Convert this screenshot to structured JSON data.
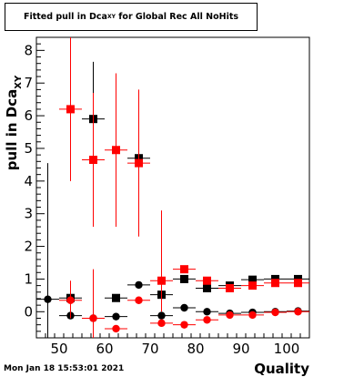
{
  "title": {
    "prefix": "Fitted pull in Dca",
    "subscript": "XY",
    "suffix": "for Global Rec All NoHits"
  },
  "timestamp": "Mon Jan 18 15:53:01 2021",
  "chart_data": {
    "type": "scatter",
    "xlabel": "Quality",
    "ylabel": "pull in Dca",
    "ylabel_subscript": "XY",
    "xlim": [
      45,
      105
    ],
    "ylim": [
      -0.8,
      8.4
    ],
    "x_ticks": [
      50,
      60,
      70,
      80,
      90,
      100
    ],
    "y_ticks": [
      0,
      1,
      2,
      3,
      4,
      5,
      6,
      7,
      8
    ],
    "grid": false,
    "series": [
      {
        "color": "#000000",
        "marker": "square",
        "points": [
          {
            "x": 52.5,
            "y": 0.42,
            "yerr": 0.0
          },
          {
            "x": 57.5,
            "y": 5.9,
            "ylo": 4.4,
            "yhi": 7.65
          },
          {
            "x": 62.5,
            "y": 0.42,
            "yerr": 0.0
          },
          {
            "x": 67.5,
            "y": 4.7,
            "yerr": 0.0
          },
          {
            "x": 72.5,
            "y": 0.52,
            "yerr": 0.0
          },
          {
            "x": 77.5,
            "y": 1.0,
            "yerr": 0.0
          },
          {
            "x": 82.5,
            "y": 0.72,
            "yerr": 0.0
          },
          {
            "x": 87.5,
            "y": 0.8,
            "yerr": 0.0
          },
          {
            "x": 92.5,
            "y": 0.98,
            "yerr": 0.0
          },
          {
            "x": 97.5,
            "y": 1.0,
            "yerr": 0.0
          },
          {
            "x": 102.5,
            "y": 1.0,
            "yerr": 0.0
          }
        ]
      },
      {
        "color": "#ff0000",
        "marker": "square",
        "points": [
          {
            "x": 52.5,
            "y": 6.2,
            "yerr": 2.2
          },
          {
            "x": 57.5,
            "y": 4.65,
            "ylo": 2.6,
            "yhi": 6.7
          },
          {
            "x": 62.5,
            "y": 4.95,
            "ylo": 2.6,
            "yhi": 7.3
          },
          {
            "x": 67.5,
            "y": 4.55,
            "ylo": 2.3,
            "yhi": 6.8
          },
          {
            "x": 72.5,
            "y": 0.95,
            "ylo": 0.0,
            "yhi": 3.1
          },
          {
            "x": 77.5,
            "y": 1.3,
            "yerr": 0.0
          },
          {
            "x": 82.5,
            "y": 0.95,
            "yerr": 0.0
          },
          {
            "x": 87.5,
            "y": 0.72,
            "yerr": 0.0
          },
          {
            "x": 92.5,
            "y": 0.8,
            "yerr": 0.0
          },
          {
            "x": 97.5,
            "y": 0.88,
            "yerr": 0.0
          },
          {
            "x": 102.5,
            "y": 0.88,
            "yerr": 0.0
          }
        ]
      },
      {
        "color": "#000000",
        "marker": "circle",
        "points": [
          {
            "x": 47.5,
            "y": 0.38,
            "ylo": -0.8,
            "yhi": 4.55
          },
          {
            "x": 52.5,
            "y": -0.12,
            "yerr": 0.0
          },
          {
            "x": 57.5,
            "y": -0.2,
            "yerr": 0.0
          },
          {
            "x": 62.5,
            "y": -0.15,
            "yerr": 0.0
          },
          {
            "x": 67.5,
            "y": 0.82,
            "yerr": 0.0
          },
          {
            "x": 72.5,
            "y": -0.12,
            "yerr": 0.0
          },
          {
            "x": 77.5,
            "y": 0.12,
            "yerr": 0.0
          },
          {
            "x": 82.5,
            "y": 0.0,
            "yerr": 0.0
          },
          {
            "x": 87.5,
            "y": -0.05,
            "yerr": 0.0
          },
          {
            "x": 92.5,
            "y": -0.02,
            "yerr": 0.0
          },
          {
            "x": 97.5,
            "y": 0.0,
            "yerr": 0.0
          },
          {
            "x": 102.5,
            "y": 0.02,
            "yerr": 0.0
          }
        ]
      },
      {
        "color": "#ff0000",
        "marker": "circle",
        "points": [
          {
            "x": 52.5,
            "y": 0.35,
            "ylo": -0.2,
            "yhi": 0.95
          },
          {
            "x": 57.5,
            "y": -0.2,
            "ylo": -0.8,
            "yhi": 1.3
          },
          {
            "x": 62.5,
            "y": -0.52,
            "yerr": 0.0
          },
          {
            "x": 67.5,
            "y": 0.35,
            "yerr": 0.0
          },
          {
            "x": 72.5,
            "y": -0.35,
            "yerr": 0.0
          },
          {
            "x": 77.5,
            "y": -0.4,
            "yerr": 0.0
          },
          {
            "x": 82.5,
            "y": -0.25,
            "yerr": 0.0
          },
          {
            "x": 87.5,
            "y": -0.1,
            "yerr": 0.0
          },
          {
            "x": 92.5,
            "y": -0.1,
            "yerr": 0.0
          },
          {
            "x": 97.5,
            "y": -0.02,
            "yerr": 0.0
          },
          {
            "x": 102.5,
            "y": 0.0,
            "yerr": 0.0
          }
        ]
      }
    ]
  }
}
